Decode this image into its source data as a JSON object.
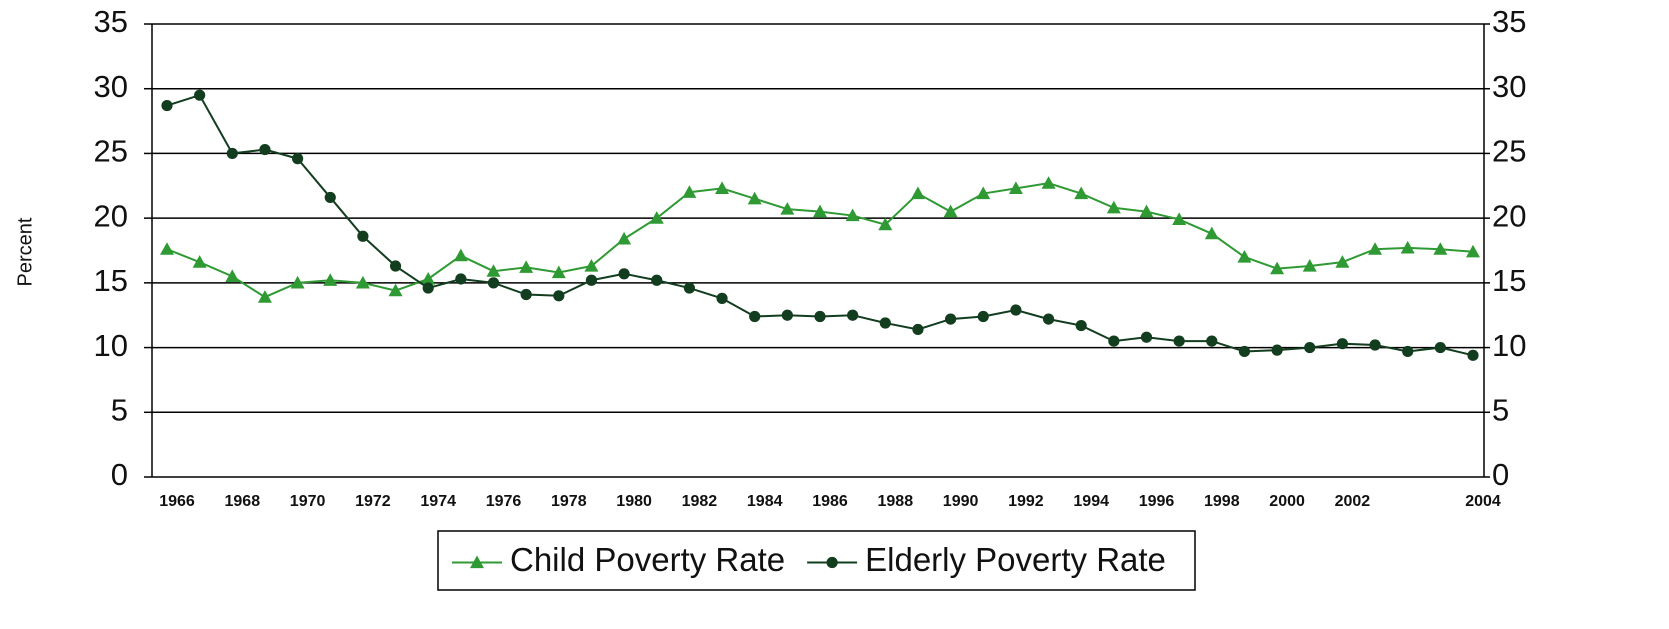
{
  "chart_data": {
    "type": "line",
    "ylabel": "Percent",
    "categories": [
      "1966",
      null,
      "1968",
      null,
      "1970",
      null,
      "1972",
      null,
      "1974",
      null,
      "1976",
      null,
      "1978",
      null,
      "1980",
      null,
      "1982",
      null,
      "1984",
      null,
      "1986",
      null,
      "1988",
      null,
      "1990",
      null,
      "1992",
      null,
      "1994",
      null,
      "1996",
      null,
      "1998",
      null,
      "2000",
      null,
      "2002",
      null,
      null,
      null,
      "2004"
    ],
    "series": [
      {
        "name": "Child Poverty Rate",
        "color": "#2f9a33",
        "marker": "triangle",
        "values": [
          17.6,
          16.6,
          15.5,
          13.9,
          15.0,
          15.2,
          15.0,
          14.4,
          15.3,
          17.1,
          15.9,
          16.2,
          15.8,
          16.3,
          18.4,
          20.0,
          22.0,
          22.3,
          21.5,
          20.7,
          20.5,
          20.2,
          19.5,
          21.9,
          20.5,
          21.9,
          22.3,
          22.7,
          21.9,
          20.8,
          20.5,
          19.9,
          18.8,
          17.0,
          16.1,
          16.3,
          16.6,
          17.6,
          17.7,
          17.6,
          17.4
        ]
      },
      {
        "name": "Elderly Poverty Rate",
        "color": "#123d1e",
        "marker": "circle",
        "values": [
          28.7,
          29.5,
          25.0,
          25.3,
          24.6,
          21.6,
          18.6,
          16.3,
          14.6,
          15.3,
          15.0,
          14.1,
          14.0,
          15.2,
          15.7,
          15.2,
          14.6,
          13.8,
          12.4,
          12.5,
          12.4,
          12.5,
          11.9,
          11.4,
          12.2,
          12.4,
          12.9,
          12.2,
          11.7,
          10.5,
          10.8,
          10.5,
          10.5,
          9.7,
          9.8,
          10.0,
          10.3,
          10.2,
          9.7,
          10.0,
          9.4
        ]
      }
    ],
    "ylim": [
      0,
      35
    ],
    "yticks": [
      0,
      5,
      10,
      15,
      20,
      25,
      30,
      35
    ],
    "y2lim": [
      0,
      35
    ],
    "y2ticks": [
      0,
      5,
      10,
      15,
      20,
      25,
      30,
      35
    ],
    "grid": true,
    "legend": "bottom"
  }
}
